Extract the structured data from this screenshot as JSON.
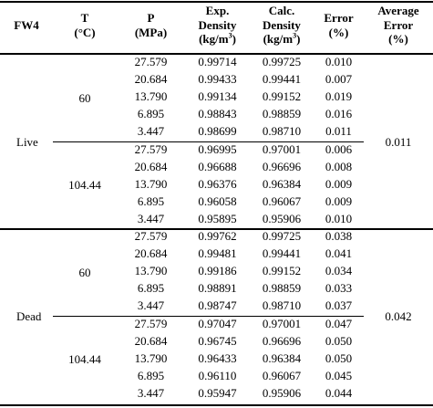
{
  "columns": {
    "group": "FW4",
    "temp": [
      "T",
      "(°C)"
    ],
    "pressure": [
      "P",
      "(MPa)"
    ],
    "exp": [
      "Exp.",
      "Density"
    ],
    "calc": [
      "Calc.",
      "Density"
    ],
    "unit": [
      "(kg/m",
      "3",
      ")"
    ],
    "error": [
      "Error",
      "(%)"
    ],
    "avg": [
      "Average",
      "Error",
      "(%)"
    ]
  },
  "groups": [
    {
      "name": "Live",
      "average_error": "0.011",
      "temperatures": [
        {
          "t": "60",
          "rows": [
            {
              "p": "27.579",
              "exp": "0.99714",
              "calc": "0.99725",
              "err": "0.010"
            },
            {
              "p": "20.684",
              "exp": "0.99433",
              "calc": "0.99441",
              "err": "0.007"
            },
            {
              "p": "13.790",
              "exp": "0.99134",
              "calc": "0.99152",
              "err": "0.019"
            },
            {
              "p": "6.895",
              "exp": "0.98843",
              "calc": "0.98859",
              "err": "0.016"
            },
            {
              "p": "3.447",
              "exp": "0.98699",
              "calc": "0.98710",
              "err": "0.011"
            }
          ]
        },
        {
          "t": "104.44",
          "rows": [
            {
              "p": "27.579",
              "exp": "0.96995",
              "calc": "0.97001",
              "err": "0.006"
            },
            {
              "p": "20.684",
              "exp": "0.96688",
              "calc": "0.96696",
              "err": "0.008"
            },
            {
              "p": "13.790",
              "exp": "0.96376",
              "calc": "0.96384",
              "err": "0.009"
            },
            {
              "p": "6.895",
              "exp": "0.96058",
              "calc": "0.96067",
              "err": "0.009"
            },
            {
              "p": "3.447",
              "exp": "0.95895",
              "calc": "0.95906",
              "err": "0.010"
            }
          ]
        }
      ]
    },
    {
      "name": "Dead",
      "average_error": "0.042",
      "temperatures": [
        {
          "t": "60",
          "rows": [
            {
              "p": "27.579",
              "exp": "0.99762",
              "calc": "0.99725",
              "err": "0.038"
            },
            {
              "p": "20.684",
              "exp": "0.99481",
              "calc": "0.99441",
              "err": "0.041"
            },
            {
              "p": "13.790",
              "exp": "0.99186",
              "calc": "0.99152",
              "err": "0.034"
            },
            {
              "p": "6.895",
              "exp": "0.98891",
              "calc": "0.98859",
              "err": "0.033"
            },
            {
              "p": "3.447",
              "exp": "0.98747",
              "calc": "0.98710",
              "err": "0.037"
            }
          ]
        },
        {
          "t": "104.44",
          "rows": [
            {
              "p": "27.579",
              "exp": "0.97047",
              "calc": "0.97001",
              "err": "0.047"
            },
            {
              "p": "20.684",
              "exp": "0.96745",
              "calc": "0.96696",
              "err": "0.050"
            },
            {
              "p": "13.790",
              "exp": "0.96433",
              "calc": "0.96384",
              "err": "0.050"
            },
            {
              "p": "6.895",
              "exp": "0.96110",
              "calc": "0.96067",
              "err": "0.045"
            },
            {
              "p": "3.447",
              "exp": "0.95947",
              "calc": "0.95906",
              "err": "0.044"
            }
          ]
        }
      ]
    }
  ]
}
